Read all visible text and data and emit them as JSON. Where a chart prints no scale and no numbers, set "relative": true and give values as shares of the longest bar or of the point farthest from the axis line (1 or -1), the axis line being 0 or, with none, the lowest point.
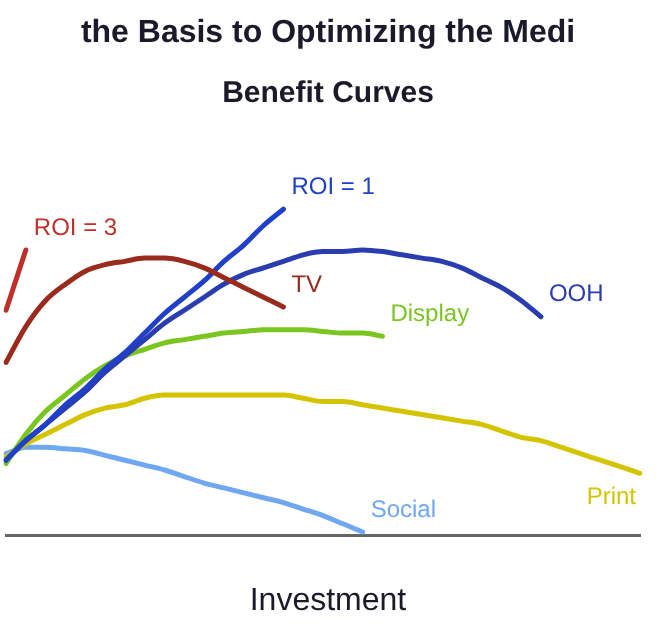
{
  "chart_data": {
    "type": "line",
    "title": "the Basis to Optimizing the Medi",
    "subtitle": "Benefit Curves",
    "xlabel": "Investment",
    "relative": true,
    "marker": "none",
    "line_style": "solid",
    "categories": [
      null,
      null,
      null,
      null,
      null,
      null,
      null,
      null,
      null,
      null,
      null,
      null,
      null,
      null,
      null,
      null,
      null,
      null,
      null,
      null,
      null,
      null,
      null,
      null,
      null,
      null,
      null,
      null,
      null,
      null,
      null,
      null,
      null
    ],
    "series": [
      {
        "name": "ROI = 3",
        "color": "#c0302a",
        "values": [
          0.69,
          0.875,
          null,
          null,
          null,
          null,
          null,
          null,
          null,
          null,
          null,
          null,
          null,
          null,
          null,
          null,
          null,
          null,
          null,
          null,
          null,
          null,
          null,
          null,
          null,
          null,
          null,
          null,
          null,
          null,
          null,
          null,
          null
        ]
      },
      {
        "name": "TV",
        "color": "#9a2a1c",
        "values": [
          0.53,
          0.64,
          0.72,
          0.77,
          0.81,
          0.83,
          0.84,
          0.85,
          0.85,
          0.84,
          0.82,
          0.79,
          0.76,
          0.73,
          0.7,
          null,
          null,
          null,
          null,
          null,
          null,
          null,
          null,
          null,
          null,
          null,
          null,
          null,
          null,
          null,
          null,
          null,
          null
        ]
      },
      {
        "name": "ROI = 1",
        "color": "#2040c8",
        "values": [
          0.23,
          0.29,
          0.34,
          0.4,
          0.45,
          0.51,
          0.56,
          0.62,
          0.68,
          0.73,
          0.78,
          0.84,
          0.89,
          0.95,
          1,
          null,
          null,
          null,
          null,
          null,
          null,
          null,
          null,
          null,
          null,
          null,
          null,
          null,
          null,
          null,
          null,
          null,
          null
        ]
      },
      {
        "name": "OOH",
        "color": "#2a3db0",
        "values": [
          0.23,
          0.29,
          0.34,
          0.39,
          0.44,
          0.5,
          0.55,
          0.6,
          0.65,
          0.69,
          0.73,
          0.77,
          0.8,
          0.82,
          0.84,
          0.86,
          0.87,
          0.87,
          0.875,
          0.87,
          0.86,
          0.85,
          0.84,
          0.82,
          0.79,
          0.76,
          0.72,
          0.67,
          null,
          null,
          null,
          null,
          null
        ]
      },
      {
        "name": "Display",
        "color": "#7ac520",
        "values": [
          0.22,
          0.31,
          0.38,
          0.43,
          0.48,
          0.52,
          0.55,
          0.57,
          0.59,
          0.6,
          0.61,
          0.62,
          0.625,
          0.63,
          0.63,
          0.63,
          0.625,
          0.62,
          0.62,
          0.61,
          null,
          null,
          null,
          null,
          null,
          null,
          null,
          null,
          null,
          null,
          null,
          null,
          null
        ]
      },
      {
        "name": "Print",
        "color": "#d4c400",
        "values": [
          0.24,
          0.28,
          0.31,
          0.34,
          0.37,
          0.39,
          0.4,
          0.42,
          0.43,
          0.43,
          0.43,
          0.43,
          0.43,
          0.43,
          0.43,
          0.42,
          0.41,
          0.41,
          0.4,
          0.39,
          0.38,
          0.37,
          0.36,
          0.35,
          0.34,
          0.32,
          0.3,
          0.29,
          0.27,
          0.25,
          0.23,
          0.21,
          0.19
        ]
      },
      {
        "name": "Social",
        "color": "#6fa8f0",
        "values": [
          0.25,
          0.27,
          0.27,
          0.265,
          0.26,
          0.245,
          0.23,
          0.215,
          0.2,
          0.18,
          0.16,
          0.145,
          0.13,
          0.115,
          0.1,
          0.08,
          0.06,
          0.035,
          0.01,
          null,
          null,
          null,
          null,
          null,
          null,
          null,
          null,
          null,
          null,
          null,
          null,
          null,
          null
        ]
      }
    ]
  }
}
